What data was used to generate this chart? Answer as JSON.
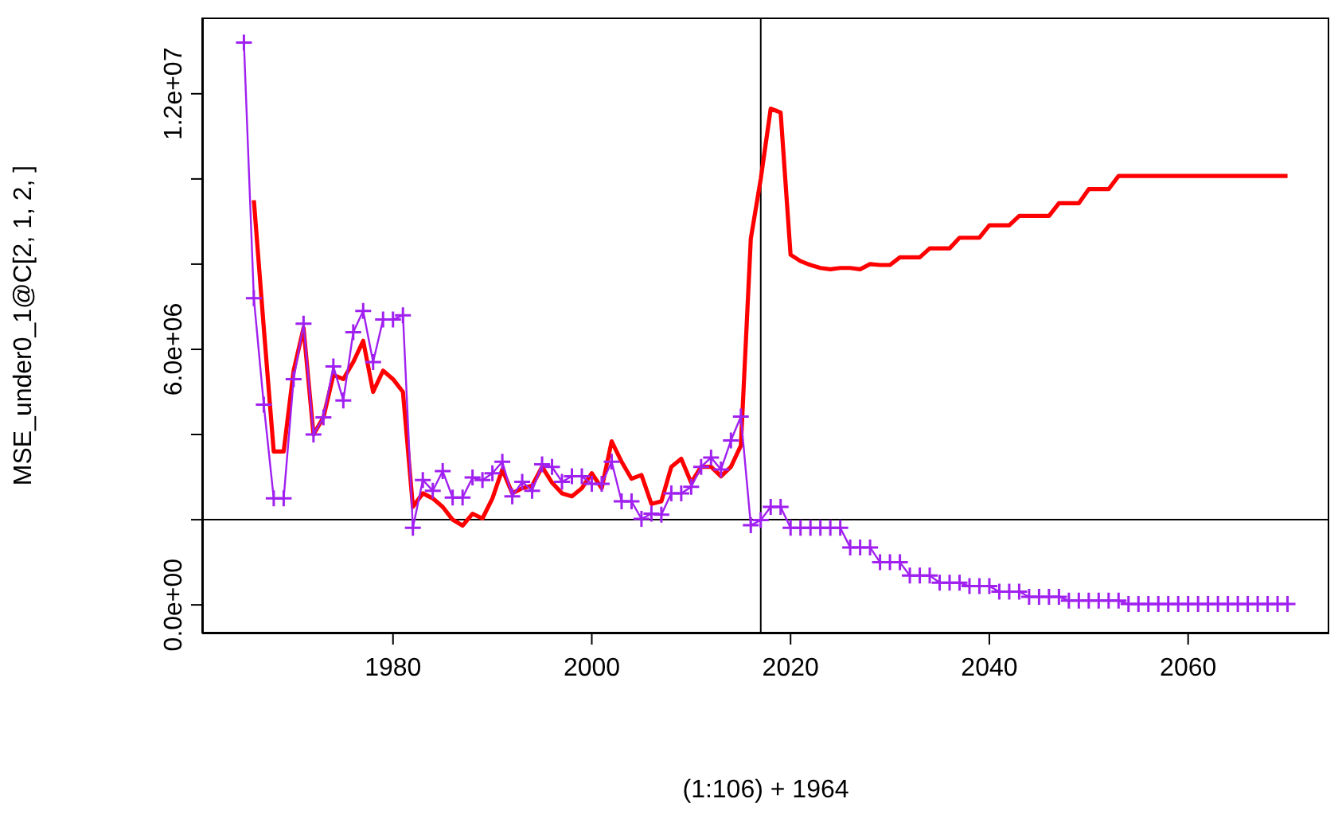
{
  "chart_data": {
    "type": "line",
    "xlabel": "(1:106) + 1964",
    "ylabel": "MSE_under0_1@C[2, 1, 2, ]",
    "x": [
      1965,
      1966,
      1967,
      1968,
      1969,
      1970,
      1971,
      1972,
      1973,
      1974,
      1975,
      1976,
      1977,
      1978,
      1979,
      1980,
      1981,
      1982,
      1983,
      1984,
      1985,
      1986,
      1987,
      1988,
      1989,
      1990,
      1991,
      1992,
      1993,
      1994,
      1995,
      1996,
      1997,
      1998,
      1999,
      2000,
      2001,
      2002,
      2003,
      2004,
      2005,
      2006,
      2007,
      2008,
      2009,
      2010,
      2011,
      2012,
      2013,
      2014,
      2015,
      2016,
      2017,
      2018,
      2019,
      2020,
      2021,
      2022,
      2023,
      2024,
      2025,
      2026,
      2027,
      2028,
      2029,
      2030,
      2031,
      2032,
      2033,
      2034,
      2035,
      2036,
      2037,
      2038,
      2039,
      2040,
      2041,
      2042,
      2043,
      2044,
      2045,
      2046,
      2047,
      2048,
      2049,
      2050,
      2051,
      2052,
      2053,
      2054,
      2055,
      2056,
      2057,
      2058,
      2059,
      2060,
      2061,
      2062,
      2063,
      2064,
      2065,
      2066,
      2067,
      2068,
      2069,
      2070
    ],
    "series": [
      {
        "color": "#ff0000",
        "marker": "none",
        "values": [
          null,
          9500000,
          6500000,
          3600000,
          3600000,
          5500000,
          6500000,
          4000000,
          4400000,
          5400000,
          5300000,
          5700000,
          6200000,
          5000000,
          5500000,
          5300000,
          5000000,
          2300000,
          2620000,
          2500000,
          2300000,
          2000000,
          1860000,
          2140000,
          2030000,
          2500000,
          3180000,
          2620000,
          2740000,
          2800000,
          3240000,
          2870000,
          2620000,
          2550000,
          2740000,
          3090000,
          2740000,
          3840000,
          3360000,
          2960000,
          3050000,
          2370000,
          2430000,
          3240000,
          3430000,
          2870000,
          3240000,
          3240000,
          3020000,
          3240000,
          3740000,
          8600000,
          10000000,
          11650000,
          11560000,
          8220000,
          8070000,
          7980000,
          7910000,
          7880000,
          7910000,
          7910000,
          7880000,
          8000000,
          7980000,
          7980000,
          8160000,
          8160000,
          8160000,
          8370000,
          8370000,
          8370000,
          8620000,
          8620000,
          8620000,
          8910000,
          8910000,
          8910000,
          9130000,
          9130000,
          9130000,
          9130000,
          9430000,
          9430000,
          9430000,
          9760000,
          9760000,
          9760000,
          10070000,
          10070000,
          10070000,
          10070000,
          10070000,
          10070000,
          10070000,
          10070000,
          10070000,
          10070000,
          10070000,
          10070000,
          10070000,
          10070000,
          10070000,
          10070000,
          10070000,
          10070000
        ]
      },
      {
        "color": "#a020f0",
        "marker": "cross",
        "values": [
          13200000,
          7200000,
          4700000,
          2500000,
          2500000,
          5300000,
          6600000,
          4000000,
          4400000,
          5600000,
          4800000,
          6400000,
          6900000,
          5700000,
          6700000,
          6700000,
          6800000,
          1810000,
          2930000,
          2680000,
          3140000,
          2520000,
          2520000,
          2990000,
          2930000,
          3090000,
          3360000,
          2550000,
          2890000,
          2680000,
          3300000,
          3240000,
          2890000,
          3020000,
          3020000,
          2840000,
          2840000,
          3360000,
          2430000,
          2430000,
          2020000,
          2140000,
          2120000,
          2620000,
          2620000,
          2770000,
          3240000,
          3460000,
          3180000,
          3860000,
          4420000,
          1870000,
          1990000,
          2300000,
          2300000,
          1810000,
          1810000,
          1810000,
          1810000,
          1810000,
          1810000,
          1350000,
          1350000,
          1350000,
          1000000,
          1000000,
          1000000,
          690000,
          690000,
          690000,
          520000,
          520000,
          520000,
          440000,
          440000,
          440000,
          310000,
          310000,
          310000,
          190000,
          190000,
          190000,
          190000,
          100000,
          100000,
          100000,
          100000,
          100000,
          100000,
          20000,
          20000,
          20000,
          20000,
          20000,
          20000,
          20000,
          20000,
          20000,
          20000,
          20000,
          20000,
          20000,
          20000,
          20000,
          20000,
          20000
        ]
      }
    ],
    "xlim": [
      1960.8,
      2074.2
    ],
    "xticks": [
      1980,
      2000,
      2020,
      2040,
      2060
    ],
    "ylim": [
      -670000,
      13790000
    ],
    "yticks": [
      {
        "value": 0,
        "label": "0.0e+00"
      },
      {
        "value": 2000000,
        "label": null
      },
      {
        "value": 4000000,
        "label": null
      },
      {
        "value": 6000000,
        "label": "6.0e+06"
      },
      {
        "value": 8000000,
        "label": null
      },
      {
        "value": 10000000,
        "label": null
      },
      {
        "value": 12000000,
        "label": "1.2e+07"
      }
    ],
    "ref_lines": [
      {
        "axis": "y",
        "value": 2000000,
        "color": "#000000"
      },
      {
        "axis": "x",
        "value": 2017,
        "color": "#000000"
      }
    ],
    "grid": false,
    "legend": false
  }
}
